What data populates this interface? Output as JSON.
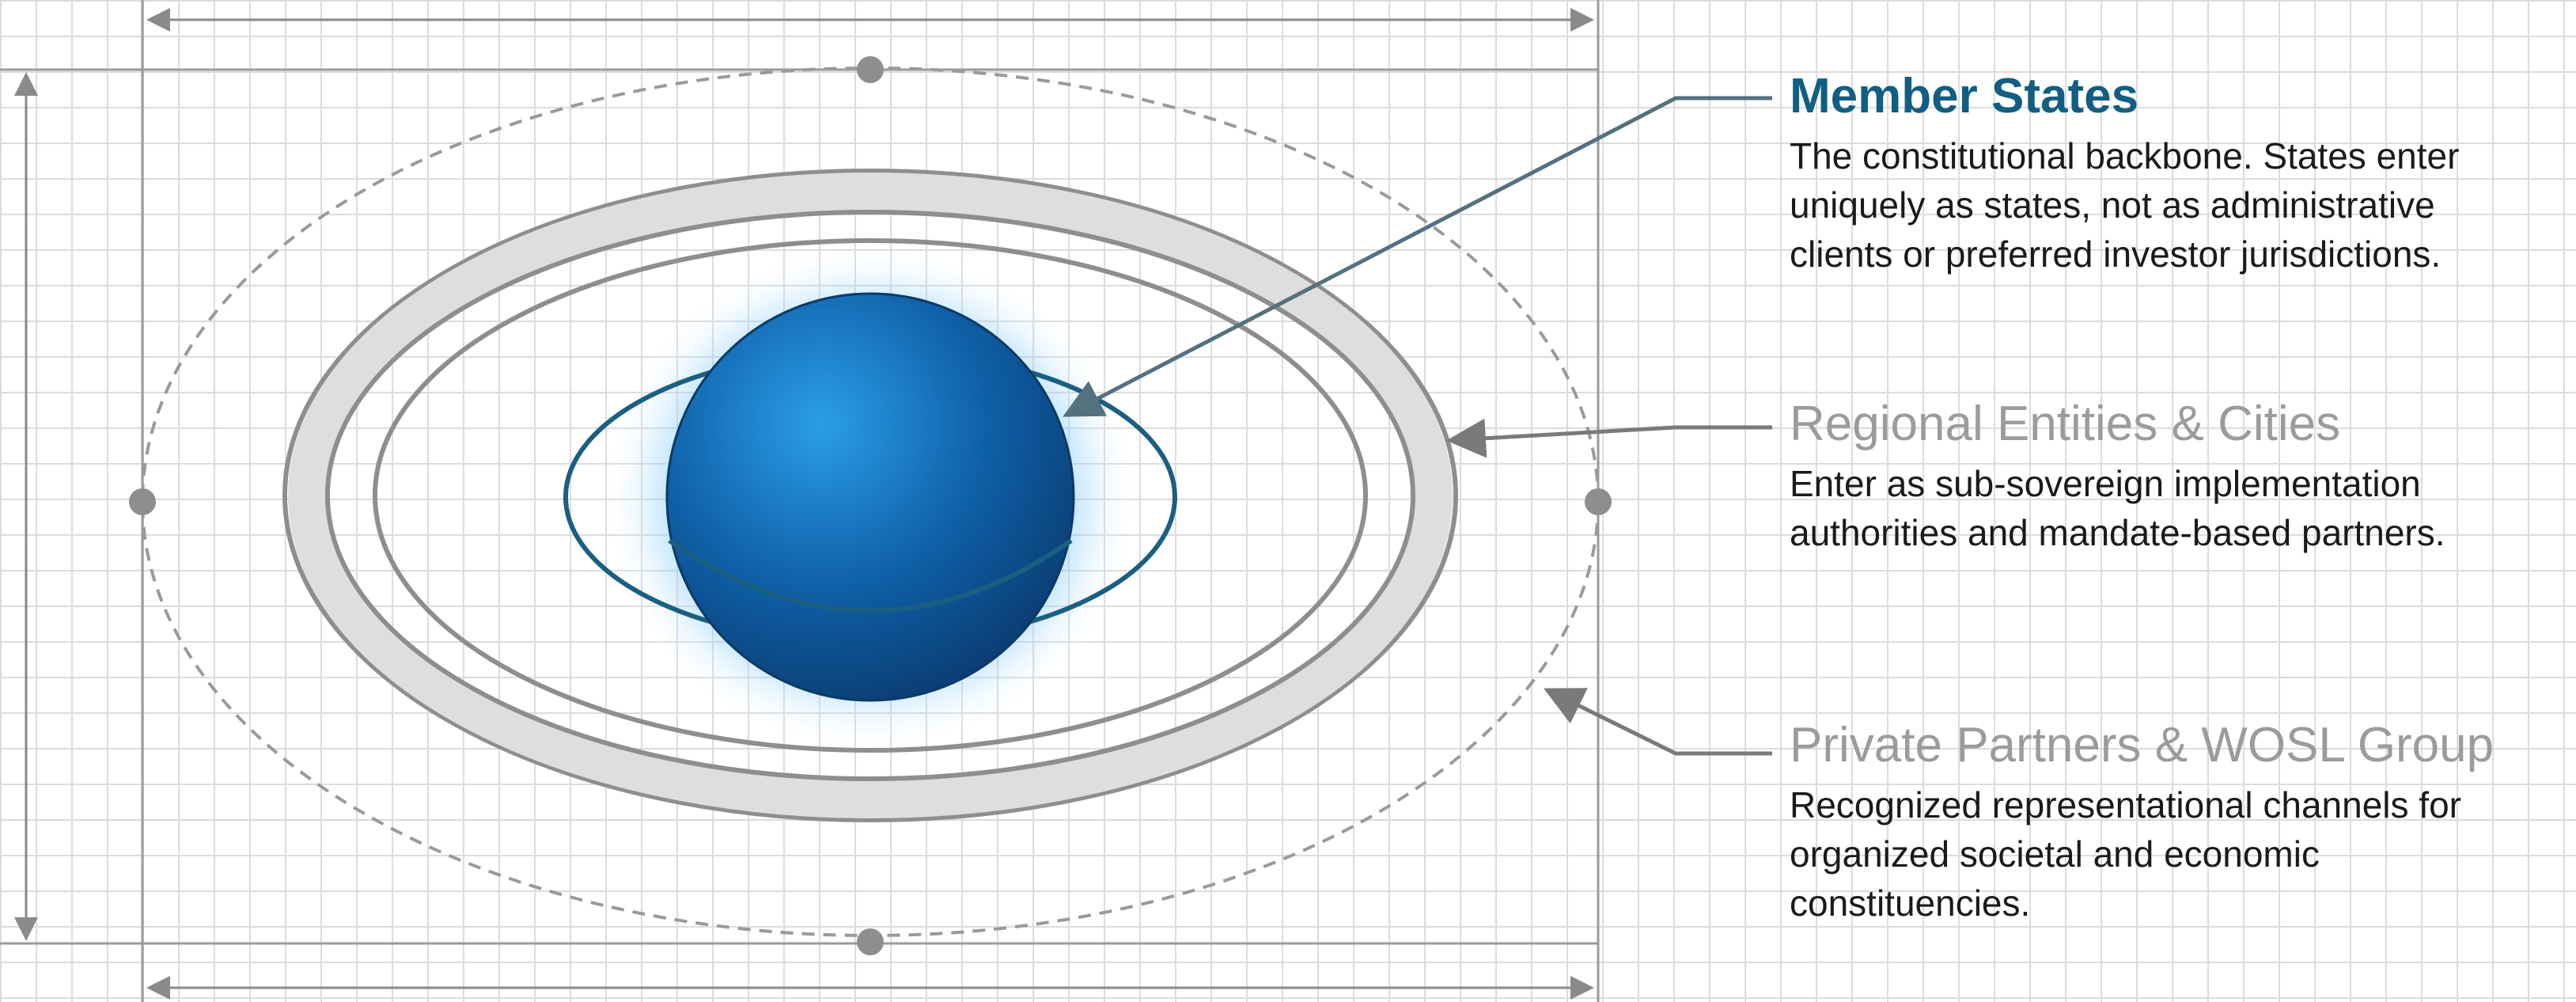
{
  "colors": {
    "accent_blue": "#115e82",
    "sphere_blue": "#1470b8",
    "ring_gray": "#8e8e8e",
    "secondary_text": "#9b9b9b"
  },
  "labels": {
    "member_states": {
      "title": "Member States",
      "lines": [
        "The constitutional backbone. States enter",
        "uniquely as states, not as administrative",
        "clients or preferred investor jurisdictions."
      ]
    },
    "regional": {
      "title": "Regional Entities & Cities",
      "lines": [
        "Enter as sub-sovereign implementation",
        "authorities and mandate-based partners."
      ]
    },
    "private": {
      "title": "Private Partners & WOSL Group",
      "lines": [
        "Recognized representational channels for",
        "organized societal and economic",
        "constituencies."
      ]
    }
  }
}
